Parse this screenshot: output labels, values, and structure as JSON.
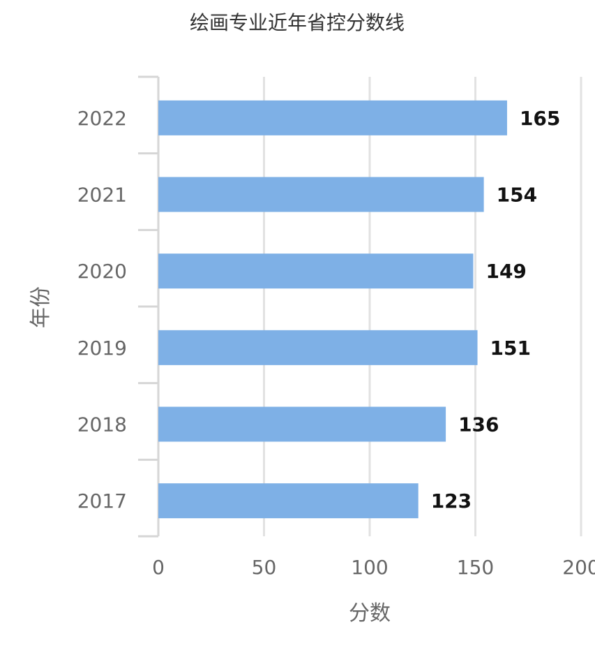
{
  "chart_data": {
    "type": "bar",
    "orientation": "horizontal",
    "title": "绘画专业近年省控分数线",
    "xlabel": "分数",
    "ylabel": "年份",
    "categories": [
      "2022",
      "2021",
      "2020",
      "2019",
      "2018",
      "2017"
    ],
    "values": [
      165,
      154,
      149,
      151,
      136,
      123
    ],
    "xlim": [
      0,
      200
    ],
    "xticks": [
      "0",
      "50",
      "100",
      "150",
      "200"
    ],
    "grid": true,
    "data_labels": true,
    "bar_color": "#7EB0E6"
  }
}
